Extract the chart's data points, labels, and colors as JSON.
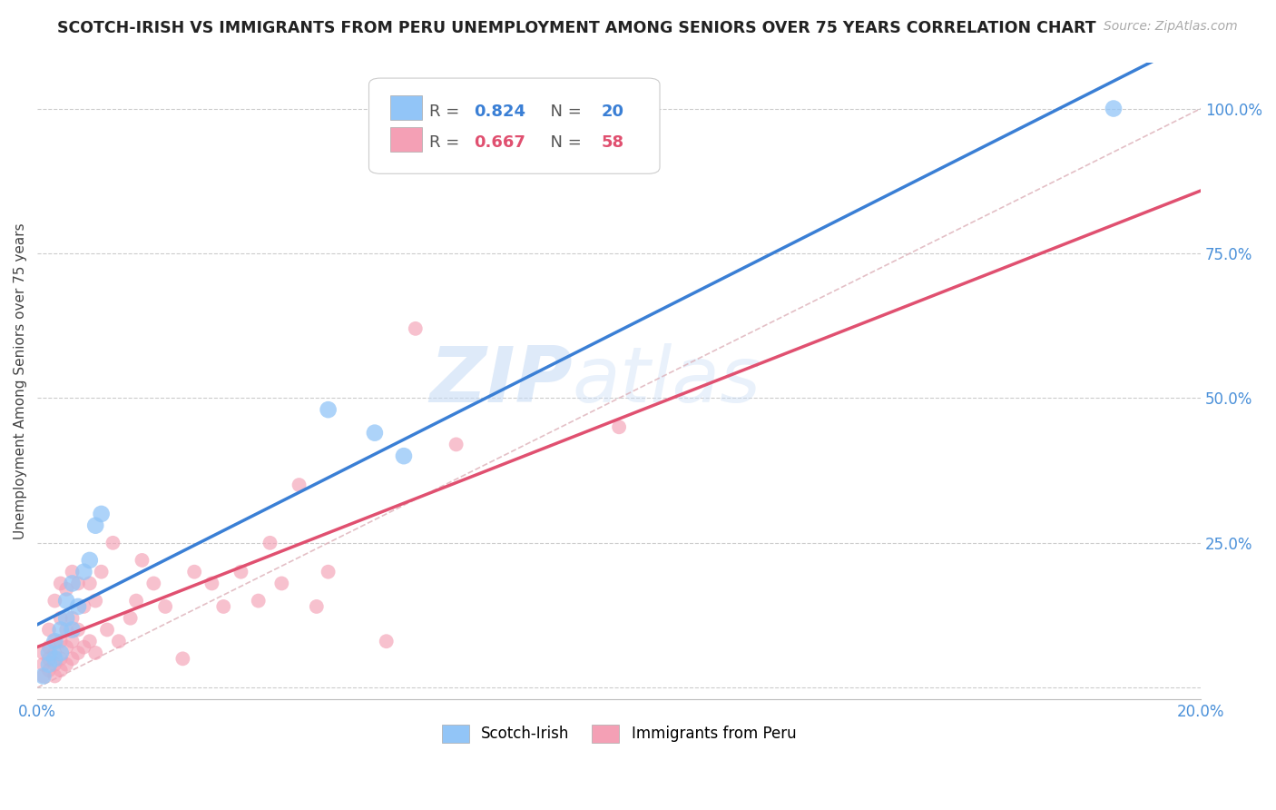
{
  "title": "SCOTCH-IRISH VS IMMIGRANTS FROM PERU UNEMPLOYMENT AMONG SENIORS OVER 75 YEARS CORRELATION CHART",
  "source": "Source: ZipAtlas.com",
  "ylabel": "Unemployment Among Seniors over 75 years",
  "xmin": 0.0,
  "xmax": 0.2,
  "ymin": -0.02,
  "ymax": 1.08,
  "legend1_label": "Scotch-Irish",
  "legend2_label": "Immigrants from Peru",
  "r1": 0.824,
  "n1": 20,
  "r2": 0.667,
  "n2": 58,
  "color1": "#92c5f7",
  "color2": "#f4a0b5",
  "line_color1": "#3a7fd5",
  "line_color2": "#e05070",
  "watermark_zip": "ZIP",
  "watermark_atlas": "atlas",
  "scotch_irish_x": [
    0.001,
    0.002,
    0.002,
    0.003,
    0.003,
    0.004,
    0.004,
    0.005,
    0.005,
    0.006,
    0.006,
    0.007,
    0.008,
    0.009,
    0.01,
    0.011,
    0.05,
    0.058,
    0.063,
    0.185
  ],
  "scotch_irish_y": [
    0.02,
    0.04,
    0.06,
    0.05,
    0.08,
    0.06,
    0.1,
    0.12,
    0.15,
    0.1,
    0.18,
    0.14,
    0.2,
    0.22,
    0.28,
    0.3,
    0.48,
    0.44,
    0.4,
    1.0
  ],
  "peru_x": [
    0.001,
    0.001,
    0.001,
    0.002,
    0.002,
    0.002,
    0.002,
    0.003,
    0.003,
    0.003,
    0.003,
    0.003,
    0.004,
    0.004,
    0.004,
    0.004,
    0.004,
    0.005,
    0.005,
    0.005,
    0.005,
    0.006,
    0.006,
    0.006,
    0.006,
    0.007,
    0.007,
    0.007,
    0.008,
    0.008,
    0.009,
    0.009,
    0.01,
    0.01,
    0.011,
    0.012,
    0.013,
    0.014,
    0.016,
    0.017,
    0.018,
    0.02,
    0.022,
    0.025,
    0.027,
    0.03,
    0.032,
    0.035,
    0.038,
    0.04,
    0.042,
    0.045,
    0.048,
    0.05,
    0.06,
    0.065,
    0.072,
    0.1
  ],
  "peru_y": [
    0.02,
    0.04,
    0.06,
    0.03,
    0.05,
    0.07,
    0.1,
    0.02,
    0.04,
    0.06,
    0.08,
    0.15,
    0.03,
    0.05,
    0.08,
    0.12,
    0.18,
    0.04,
    0.07,
    0.1,
    0.17,
    0.05,
    0.08,
    0.12,
    0.2,
    0.06,
    0.1,
    0.18,
    0.07,
    0.14,
    0.08,
    0.18,
    0.06,
    0.15,
    0.2,
    0.1,
    0.25,
    0.08,
    0.12,
    0.15,
    0.22,
    0.18,
    0.14,
    0.05,
    0.2,
    0.18,
    0.14,
    0.2,
    0.15,
    0.25,
    0.18,
    0.35,
    0.14,
    0.2,
    0.08,
    0.62,
    0.42,
    0.45
  ]
}
